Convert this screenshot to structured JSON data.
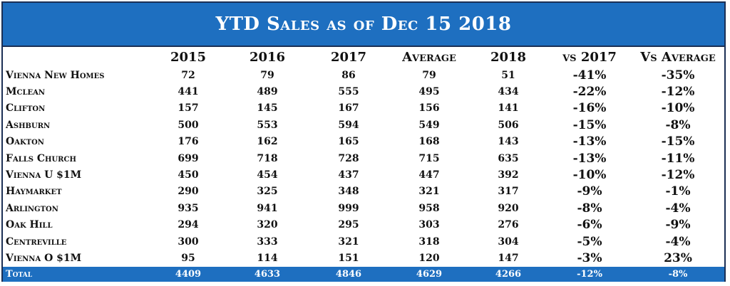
{
  "title": "YTD Sales as of Dec 15 2018",
  "columns": [
    "",
    "2015",
    "2016",
    "2017",
    "Average",
    "2018",
    "vs 2017",
    "Vs Average"
  ],
  "rows": [
    {
      "name": "Vienna New Homes",
      "v2015": "72",
      "v2016": "79",
      "v2017": "86",
      "avg": "79",
      "v2018": "51",
      "vs2017": "-41%",
      "vsavg": "-35%"
    },
    {
      "name": "Mclean",
      "v2015": "441",
      "v2016": "489",
      "v2017": "555",
      "avg": "495",
      "v2018": "434",
      "vs2017": "-22%",
      "vsavg": "-12%"
    },
    {
      "name": "Clifton",
      "v2015": "157",
      "v2016": "145",
      "v2017": "167",
      "avg": "156",
      "v2018": "141",
      "vs2017": "-16%",
      "vsavg": "-10%"
    },
    {
      "name": "Ashburn",
      "v2015": "500",
      "v2016": "553",
      "v2017": "594",
      "avg": "549",
      "v2018": "506",
      "vs2017": "-15%",
      "vsavg": "-8%"
    },
    {
      "name": "Oakton",
      "v2015": "176",
      "v2016": "162",
      "v2017": "165",
      "avg": "168",
      "v2018": "143",
      "vs2017": "-13%",
      "vsavg": "-15%"
    },
    {
      "name": "Falls Church",
      "v2015": "699",
      "v2016": "718",
      "v2017": "728",
      "avg": "715",
      "v2018": "635",
      "vs2017": "-13%",
      "vsavg": "-11%"
    },
    {
      "name": "Vienna U $1M",
      "v2015": "450",
      "v2016": "454",
      "v2017": "437",
      "avg": "447",
      "v2018": "392",
      "vs2017": "-10%",
      "vsavg": "-12%"
    },
    {
      "name": "Haymarket",
      "v2015": "290",
      "v2016": "325",
      "v2017": "348",
      "avg": "321",
      "v2018": "317",
      "vs2017": "-9%",
      "vsavg": "-1%"
    },
    {
      "name": "Arlington",
      "v2015": "935",
      "v2016": "941",
      "v2017": "999",
      "avg": "958",
      "v2018": "920",
      "vs2017": "-8%",
      "vsavg": "-4%"
    },
    {
      "name": "Oak Hill",
      "v2015": "294",
      "v2016": "320",
      "v2017": "295",
      "avg": "303",
      "v2018": "276",
      "vs2017": "-6%",
      "vsavg": "-9%"
    },
    {
      "name": "Centreville",
      "v2015": "300",
      "v2016": "333",
      "v2017": "321",
      "avg": "318",
      "v2018": "304",
      "vs2017": "-5%",
      "vsavg": "-4%"
    },
    {
      "name": "Vienna O $1M",
      "v2015": "95",
      "v2016": "114",
      "v2017": "151",
      "avg": "120",
      "v2018": "147",
      "vs2017": "-3%",
      "vsavg": "23%"
    }
  ],
  "total": {
    "name": "Total",
    "v2015": "4409",
    "v2016": "4633",
    "v2017": "4846",
    "avg": "4629",
    "v2018": "4266",
    "vs2017": "-12%",
    "vsavg": "-8%"
  },
  "colors": {
    "header_blue": "#1e6fc0",
    "border_navy": "#1b2f55"
  }
}
